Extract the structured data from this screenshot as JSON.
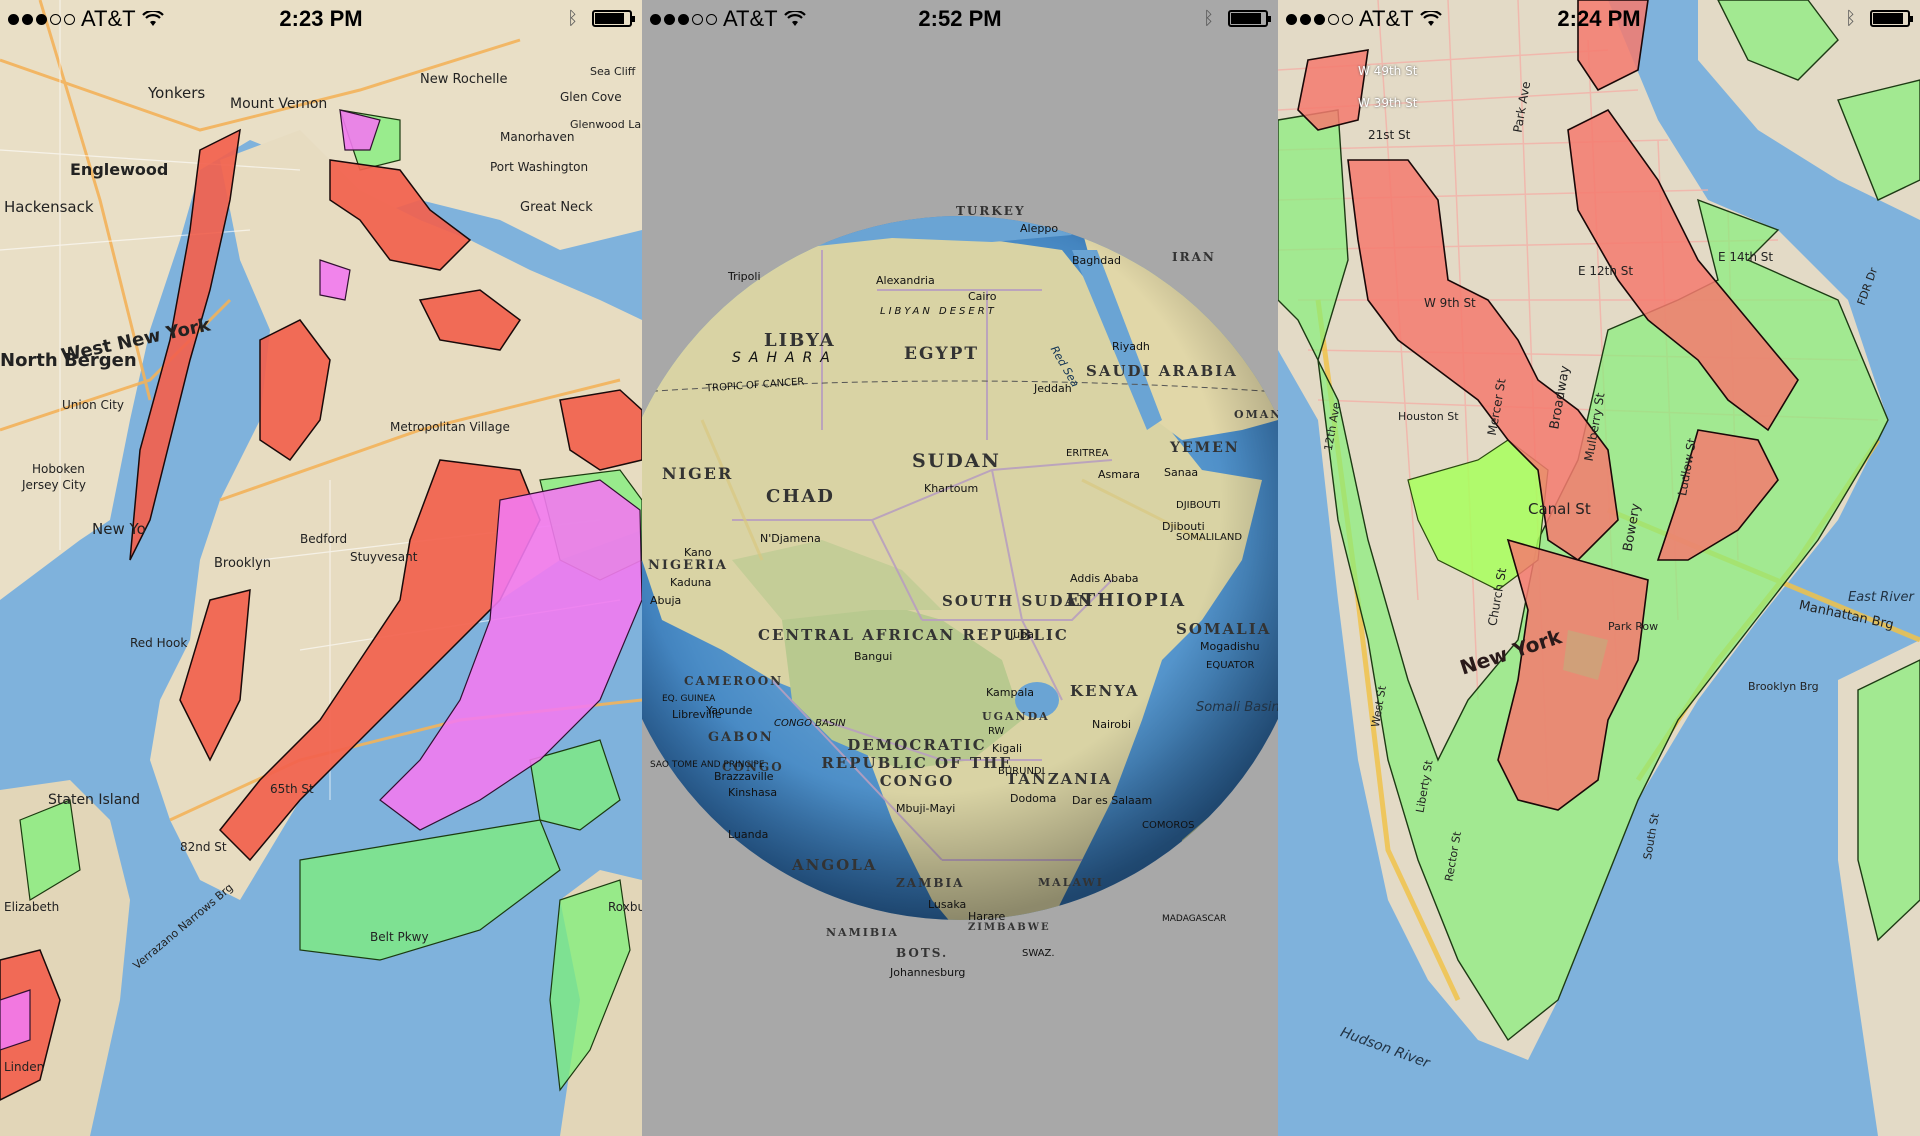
{
  "panels": [
    {
      "status": {
        "carrier": "AT&T",
        "time": "2:23 PM",
        "signal_bars": 3,
        "battery_level": 0.85
      },
      "labels": [
        "Yonkers",
        "New Rochelle",
        "Mount Vernon",
        "Glen Cove",
        "Englewood",
        "Port Washington",
        "Great Neck",
        "Hackensack",
        "Manorhaven",
        "Sea Cliff",
        "Glenwood Landing",
        "West New York",
        "North Bergen",
        "Union City",
        "Hoboken",
        "Jersey City",
        "New Yo",
        "Bedford",
        "Stuyvesant",
        "Brooklyn",
        "Red Hook",
        "Staten Island",
        "Metropolitan Village",
        "65th St",
        "82nd St",
        "Verrazano Narrows Brg",
        "Belt Pkwy",
        "Roxbury",
        "Elizabeth",
        "Linden"
      ]
    },
    {
      "status": {
        "carrier": "AT&T",
        "time": "2:52 PM",
        "signal_bars": 3,
        "battery_level": 0.9
      },
      "countries": [
        "LIBYA",
        "EGYPT",
        "SUDAN",
        "CHAD",
        "NIGER",
        "NIGERIA",
        "CENTRAL AFRICAN REPUBLIC",
        "SOUTH SUDAN",
        "ETHIOPIA",
        "SOMALIA",
        "KENYA",
        "DEMOCRATIC REPUBLIC OF THE CONGO",
        "TANZANIA",
        "ANGOLA",
        "ZAMBIA",
        "SAUDI ARABIA",
        "YEMEN",
        "TURKEY",
        "GABON",
        "CONGO",
        "CAMEROON",
        "UGANDA",
        "MALAWI",
        "NAMIBIA",
        "BOTS.",
        "ZIMBABWE",
        "IRAN",
        "OMAN"
      ],
      "cities": [
        "Cairo",
        "Alexandria",
        "Khartoum",
        "N'Djamena",
        "Addis Ababa",
        "Nairobi",
        "Kampala",
        "Kigali",
        "Dodoma",
        "Dar es Salaam",
        "Kinshasa",
        "Brazzaville",
        "Luanda",
        "Lusaka",
        "Harare",
        "Juba",
        "Bangui",
        "Jeddah",
        "Riyadh",
        "Sanaa",
        "Asmara",
        "Djibouti",
        "Mbuji-Mayi",
        "Kano",
        "Kaduna",
        "Abuja",
        "Yaounde",
        "Libreville",
        "Mogadishu",
        "Tripoli",
        "Baghdad",
        "Aleppo",
        "Johannesburg"
      ],
      "regions": [
        "TROPIC OF CANCER",
        "EQUATOR",
        "CONGO BASIN",
        "Somali Basin",
        "Red Sea",
        "COMOROS",
        "MADAGASCAR",
        "LIBYAN DESERT",
        "SAHARA",
        "ERITREA",
        "DJIBOUTI",
        "SOMALILAND",
        "BURUNDI",
        "RW",
        "EQ. GUINEA",
        "SAO TOME AND PRINCIPE",
        "SWAZ."
      ]
    },
    {
      "status": {
        "carrier": "AT&T",
        "time": "2:24 PM",
        "signal_bars": 3,
        "battery_level": 0.9
      },
      "labels": [
        "W 49th St",
        "W 39th St",
        "21st St",
        "Park Ave",
        "E 14th St",
        "E 12th St",
        "W 9th St",
        "Broadway",
        "Mercer St",
        "Mulberry St",
        "Bowery",
        "Ludlow St",
        "Canal St",
        "New York",
        "Church St",
        "Liberty St",
        "Rector St",
        "Park Row",
        "South St",
        "Brooklyn Brg",
        "Manhattan Brg",
        "Hudson River",
        "East River",
        "12th Ave",
        "West St",
        "Houston St",
        "FDR Dr"
      ]
    }
  ]
}
